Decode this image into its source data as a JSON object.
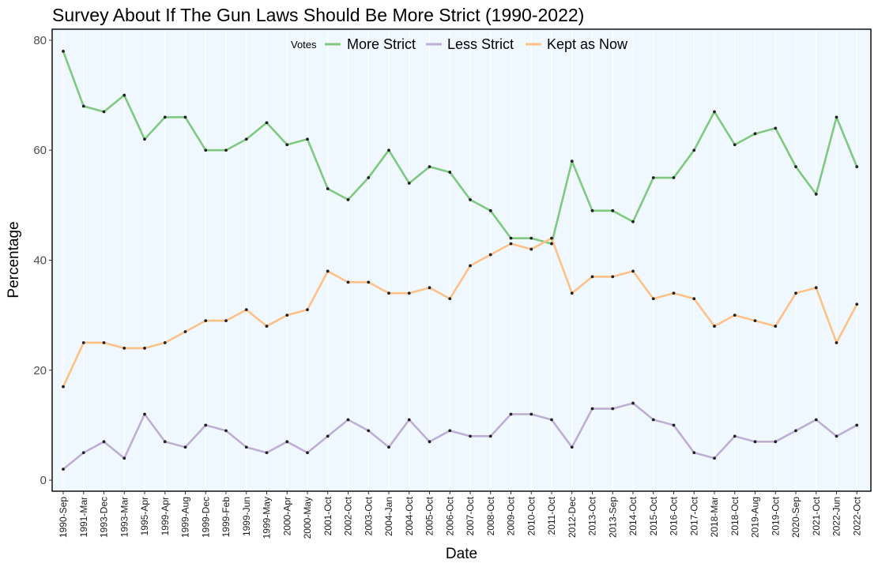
{
  "chart_data": {
    "type": "line",
    "title": "Survey About If The Gun Laws Should Be More Strict (1990-2022)",
    "xlabel": "Date",
    "ylabel": "Percentage",
    "ylim": [
      -2,
      82
    ],
    "yticks": [
      0,
      20,
      40,
      60,
      80
    ],
    "grid": true,
    "background": "#f0f8ff",
    "legend": {
      "title": "Votes",
      "placement": "top-center"
    },
    "categories": [
      "1990-Sep",
      "1991-Mar",
      "1993-Dec",
      "1993-Mar",
      "1995-Apr",
      "1999-Apr",
      "1999-Aug",
      "1999-Dec",
      "1999-Feb",
      "1999-Jun",
      "1999-May",
      "2000-Apr",
      "2000-May",
      "2001-Oct",
      "2002-Oct",
      "2003-Oct",
      "2004-Jan",
      "2004-Oct",
      "2005-Oct",
      "2006-Oct",
      "2007-Oct",
      "2008-Oct",
      "2009-Oct",
      "2010-Oct",
      "2011-Oct",
      "2012-Dec",
      "2013-Oct",
      "2013-Sep",
      "2014-Oct",
      "2015-Oct",
      "2016-Oct",
      "2017-Oct",
      "2018-Mar",
      "2018-Oct",
      "2019-Aug",
      "2019-Oct",
      "2020-Sep",
      "2021-Oct",
      "2022-Jun",
      "2022-Oct"
    ],
    "series": [
      {
        "name": "More Strict",
        "color": "#7fc97f",
        "values": [
          78,
          68,
          67,
          70,
          62,
          66,
          66,
          60,
          60,
          62,
          65,
          61,
          62,
          53,
          51,
          55,
          60,
          54,
          57,
          56,
          51,
          49,
          44,
          44,
          43,
          58,
          49,
          49,
          47,
          55,
          55,
          60,
          67,
          61,
          63,
          64,
          57,
          52,
          66,
          57
        ]
      },
      {
        "name": "Less Strict",
        "color": "#beaed4",
        "values": [
          2,
          5,
          7,
          4,
          12,
          7,
          6,
          10,
          9,
          6,
          5,
          7,
          5,
          8,
          11,
          9,
          6,
          11,
          7,
          9,
          8,
          8,
          12,
          12,
          11,
          6,
          13,
          13,
          14,
          11,
          10,
          5,
          4,
          8,
          7,
          7,
          9,
          11,
          8,
          10
        ]
      },
      {
        "name": "Kept as Now",
        "color": "#fdc086",
        "values": [
          17,
          25,
          25,
          24,
          24,
          25,
          27,
          29,
          29,
          31,
          28,
          30,
          31,
          38,
          36,
          36,
          34,
          34,
          35,
          33,
          39,
          41,
          43,
          42,
          44,
          34,
          37,
          37,
          38,
          33,
          34,
          33,
          28,
          30,
          29,
          28,
          34,
          35,
          25,
          32
        ]
      }
    ]
  }
}
